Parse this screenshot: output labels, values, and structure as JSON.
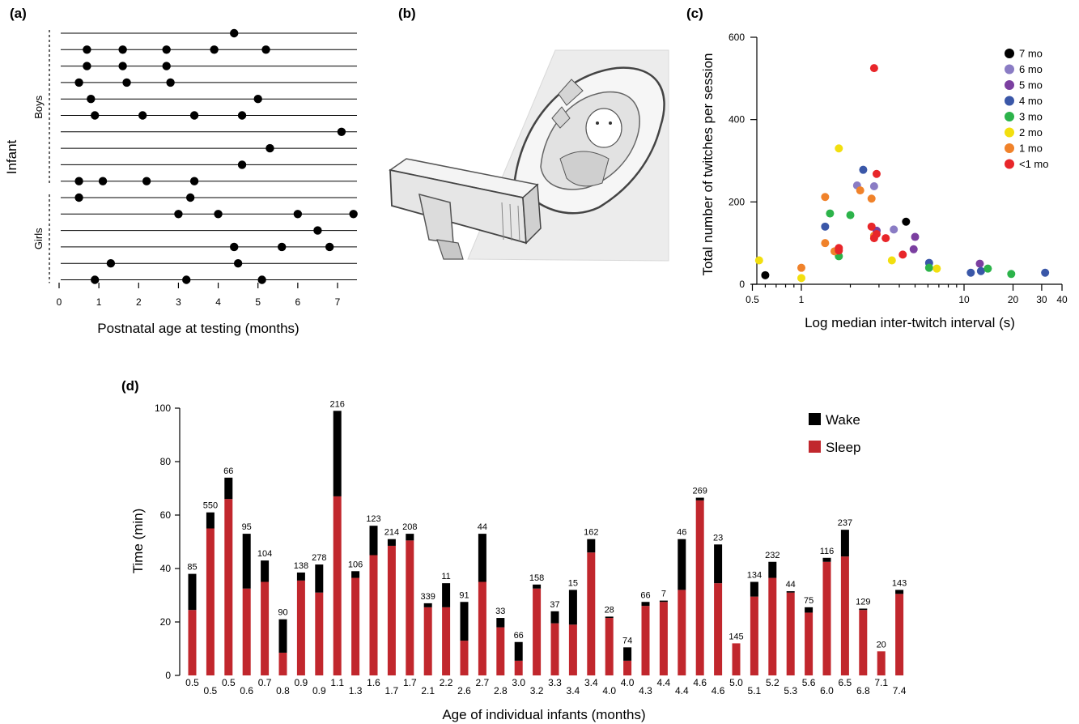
{
  "panels": {
    "a": {
      "letter": "(a)",
      "chart_data": {
        "type": "scatter",
        "xlabel": "Postnatal age at testing (months)",
        "ylabel": "Infant",
        "xlim": [
          0,
          7.5
        ],
        "xticks": [
          "0",
          "1",
          "2",
          "3",
          "4",
          "5",
          "6",
          "7"
        ],
        "groups": [
          {
            "name": "Boys",
            "rows": [
              0,
              9
            ]
          },
          {
            "name": "Girls",
            "rows": [
              10,
              15
            ]
          }
        ],
        "rows": [
          [
            4.4
          ],
          [
            0.7,
            1.6,
            2.7,
            3.9,
            5.2
          ],
          [
            0.7,
            1.6,
            2.7
          ],
          [
            0.5,
            1.7,
            2.8
          ],
          [
            0.8,
            5.0
          ],
          [
            0.9,
            2.1,
            3.4,
            4.6
          ],
          [
            7.1
          ],
          [
            5.3
          ],
          [
            4.6
          ],
          [
            0.5,
            1.1,
            2.2,
            3.4
          ],
          [
            0.5,
            3.3
          ],
          [
            3.0,
            4.0,
            6.0,
            7.4
          ],
          [
            6.5
          ],
          [
            4.4,
            5.6,
            6.8
          ],
          [
            1.3,
            4.5
          ],
          [
            0.9,
            3.2,
            5.1
          ]
        ]
      }
    },
    "b": {
      "letter": "(b)",
      "image_description_icon": "infant-car-seat-camera-photo"
    },
    "c": {
      "letter": "(c)",
      "chart_data": {
        "type": "scatter",
        "xlabel": "Log median inter-twitch interval (s)",
        "ylabel": "Total number of twitches per session",
        "xscale": "log",
        "xlim": [
          0.5,
          40
        ],
        "ylim": [
          0,
          600
        ],
        "xticks": [
          "0.5",
          "1",
          "10",
          "20",
          "30",
          "40"
        ],
        "yticks": [
          "0",
          "200",
          "400",
          "600"
        ],
        "legend_position": "top-right",
        "series": [
          {
            "name": "7 mo",
            "color": "#000000",
            "points": [
              [
                0.6,
                22
              ],
              [
                4.4,
                152
              ]
            ]
          },
          {
            "name": "6 mo",
            "color": "#8a7cc4",
            "points": [
              [
                2.2,
                240
              ],
              [
                2.8,
                238
              ],
              [
                3.7,
                133
              ],
              [
                2.9,
                130
              ]
            ]
          },
          {
            "name": "5 mo",
            "color": "#7b3fa0",
            "points": [
              [
                5.0,
                115
              ],
              [
                4.9,
                85
              ],
              [
                12.5,
                50
              ],
              [
                2.9,
                130
              ]
            ]
          },
          {
            "name": "4 mo",
            "color": "#3a57a8",
            "points": [
              [
                2.4,
                278
              ],
              [
                1.4,
                140
              ],
              [
                6.1,
                52
              ],
              [
                11.0,
                28
              ],
              [
                12.7,
                32
              ],
              [
                31.5,
                28
              ]
            ]
          },
          {
            "name": "3 mo",
            "color": "#2cb34a",
            "points": [
              [
                1.5,
                172
              ],
              [
                2.0,
                168
              ],
              [
                1.7,
                68
              ],
              [
                6.1,
                40
              ],
              [
                14.0,
                38
              ],
              [
                19.5,
                25
              ]
            ]
          },
          {
            "name": "2 mo",
            "color": "#f2df0f",
            "points": [
              [
                1.7,
                330
              ],
              [
                0.55,
                58
              ],
              [
                1.0,
                15
              ],
              [
                3.6,
                58
              ],
              [
                6.8,
                38
              ]
            ]
          },
          {
            "name": "1 mo",
            "color": "#f0822a",
            "points": [
              [
                1.4,
                212
              ],
              [
                2.3,
                228
              ],
              [
                2.7,
                208
              ],
              [
                1.4,
                100
              ],
              [
                1.0,
                40
              ],
              [
                1.6,
                80
              ],
              [
                2.8,
                118
              ]
            ]
          },
          {
            "name": "<1 mo",
            "color": "#e8262a",
            "points": [
              [
                2.8,
                525
              ],
              [
                2.9,
                268
              ],
              [
                2.7,
                140
              ],
              [
                1.7,
                88
              ],
              [
                2.8,
                112
              ],
              [
                3.3,
                112
              ],
              [
                4.2,
                72
              ],
              [
                2.9,
                122
              ],
              [
                1.7,
                82
              ]
            ]
          }
        ]
      }
    },
    "d": {
      "letter": "(d)",
      "chart_data": {
        "type": "bar",
        "stacked": true,
        "xlabel": "Age of individual infants (months)",
        "ylabel": "Time (min)",
        "ylim": [
          0,
          100
        ],
        "yticks": [
          "0",
          "20",
          "40",
          "60",
          "80",
          "100"
        ],
        "legend_position": "top-right",
        "categories": [
          "0.5",
          "0.5",
          "0.5",
          "0.6",
          "0.7",
          "0.8",
          "0.9",
          "0.9",
          "1.1",
          "1.3",
          "1.6",
          "1.7",
          "1.7",
          "2.1",
          "2.2",
          "2.6",
          "2.7",
          "2.8",
          "3.0",
          "3.2",
          "3.3",
          "3.4",
          "3.4",
          "4.0",
          "4.0",
          "4.3",
          "4.4",
          "4.4",
          "4.6",
          "4.6",
          "5.0",
          "5.1",
          "5.2",
          "5.3",
          "5.6",
          "6.0",
          "6.5",
          "6.8",
          "7.1",
          "7.4"
        ],
        "bar_labels": [
          "85",
          "550",
          "66",
          "95",
          "104",
          "90",
          "138",
          "278",
          "216",
          "106",
          "123",
          "214",
          "208",
          "339",
          "11",
          "91",
          "44",
          "33",
          "66",
          "158",
          "37",
          "15",
          "162",
          "28",
          "74",
          "66",
          "7",
          "46",
          "269",
          "23",
          "145",
          "134",
          "232",
          "44",
          "75",
          "116",
          "237",
          "129",
          "20",
          "143"
        ],
        "series": [
          {
            "name": "Sleep",
            "color": "#c1272d",
            "values": [
              24.5,
              55,
              66,
              32.5,
              35,
              8.5,
              35.5,
              31,
              67,
              36.5,
              45,
              48.5,
              50.5,
              25.5,
              25.5,
              13,
              35,
              18,
              5.5,
              32.5,
              19.5,
              19,
              46,
              21.5,
              5.5,
              26,
              27.5,
              32,
              65.5,
              34.5,
              12,
              29.5,
              36.5,
              31,
              23.5,
              42.5,
              44.5,
              24.5,
              9,
              30.5
            ]
          },
          {
            "name": "Wake",
            "color": "#000000",
            "values": [
              13.5,
              6,
              8,
              20.5,
              8,
              12.5,
              3,
              10.5,
              32,
              2.5,
              11,
              2.5,
              2.5,
              1.5,
              9,
              14.5,
              18,
              3.5,
              7,
              1.5,
              4.5,
              13,
              5,
              0.5,
              5,
              1.5,
              0.5,
              19,
              1,
              14.5,
              0,
              5.5,
              6,
              0.5,
              2,
              1.5,
              10,
              0.5,
              0,
              1.5
            ]
          }
        ]
      }
    }
  }
}
